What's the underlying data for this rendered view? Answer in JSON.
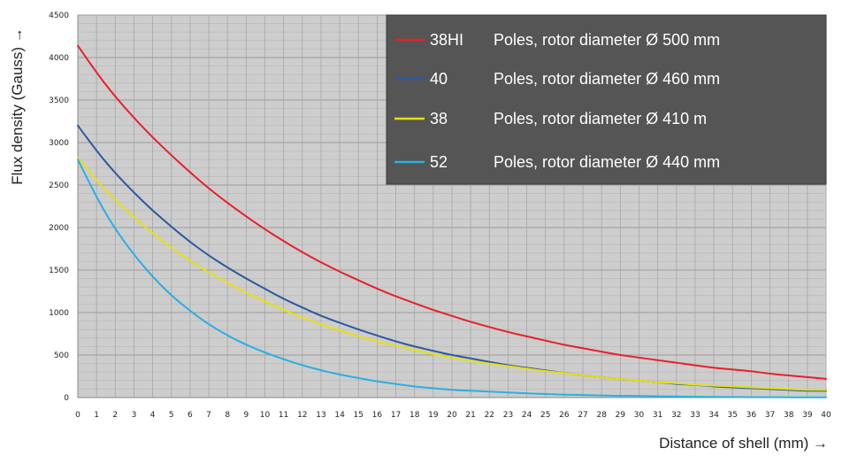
{
  "chart_data": {
    "type": "line",
    "xlabel": "Distance of shell (mm) →",
    "ylabel": "Flux density (Gauss) →",
    "ylim": [
      0,
      4500
    ],
    "xlim": [
      0,
      40
    ],
    "yticks": [
      0,
      500,
      1000,
      1500,
      2000,
      2500,
      3000,
      3500,
      4000,
      4500
    ],
    "x": [
      0,
      1,
      2,
      3,
      4,
      5,
      6,
      7,
      8,
      9,
      10,
      11,
      12,
      13,
      14,
      15,
      16,
      17,
      18,
      19,
      20,
      21,
      22,
      23,
      24,
      25,
      26,
      27,
      28,
      29,
      30,
      31,
      32,
      33,
      34,
      35,
      36,
      37,
      38,
      39,
      40
    ],
    "grid": true,
    "legend_position": "top-right",
    "series": [
      {
        "name": "38HI",
        "label": "Poles, rotor diameter Ø 500 mm",
        "color": "#e8202a",
        "values": [
          4140,
          3820,
          3540,
          3290,
          3060,
          2850,
          2650,
          2460,
          2290,
          2130,
          1980,
          1840,
          1710,
          1590,
          1480,
          1380,
          1280,
          1190,
          1110,
          1030,
          960,
          890,
          830,
          770,
          720,
          670,
          620,
          580,
          540,
          500,
          470,
          440,
          410,
          380,
          350,
          330,
          310,
          280,
          260,
          240,
          220
        ]
      },
      {
        "name": "40",
        "label": "Poles, rotor diameter Ø 460 mm",
        "color": "#2a5aa0",
        "values": [
          3200,
          2900,
          2640,
          2410,
          2200,
          2010,
          1830,
          1670,
          1530,
          1400,
          1280,
          1160,
          1060,
          960,
          880,
          800,
          730,
          660,
          600,
          550,
          500,
          460,
          420,
          380,
          350,
          320,
          290,
          260,
          240,
          220,
          200,
          180,
          160,
          150,
          130,
          120,
          110,
          100,
          90,
          80,
          80
        ]
      },
      {
        "name": "38",
        "label": "Poles, rotor diameter Ø 410 m",
        "color": "#e6e010",
        "values": [
          2820,
          2550,
          2320,
          2120,
          1930,
          1760,
          1610,
          1470,
          1350,
          1230,
          1130,
          1030,
          940,
          860,
          790,
          720,
          660,
          610,
          560,
          510,
          470,
          430,
          400,
          370,
          340,
          310,
          290,
          260,
          240,
          220,
          200,
          180,
          170,
          150,
          140,
          130,
          120,
          110,
          100,
          90,
          90
        ]
      },
      {
        "name": "52",
        "label": "Poles, rotor diameter Ø 440 mm",
        "color": "#2ab0e0",
        "values": [
          2800,
          2350,
          1980,
          1680,
          1420,
          1200,
          1020,
          860,
          730,
          620,
          530,
          450,
          380,
          320,
          270,
          230,
          190,
          160,
          130,
          110,
          90,
          80,
          70,
          60,
          50,
          40,
          35,
          30,
          25,
          20,
          18,
          15,
          12,
          10,
          8,
          6,
          5,
          4,
          3,
          2,
          2
        ]
      }
    ]
  }
}
